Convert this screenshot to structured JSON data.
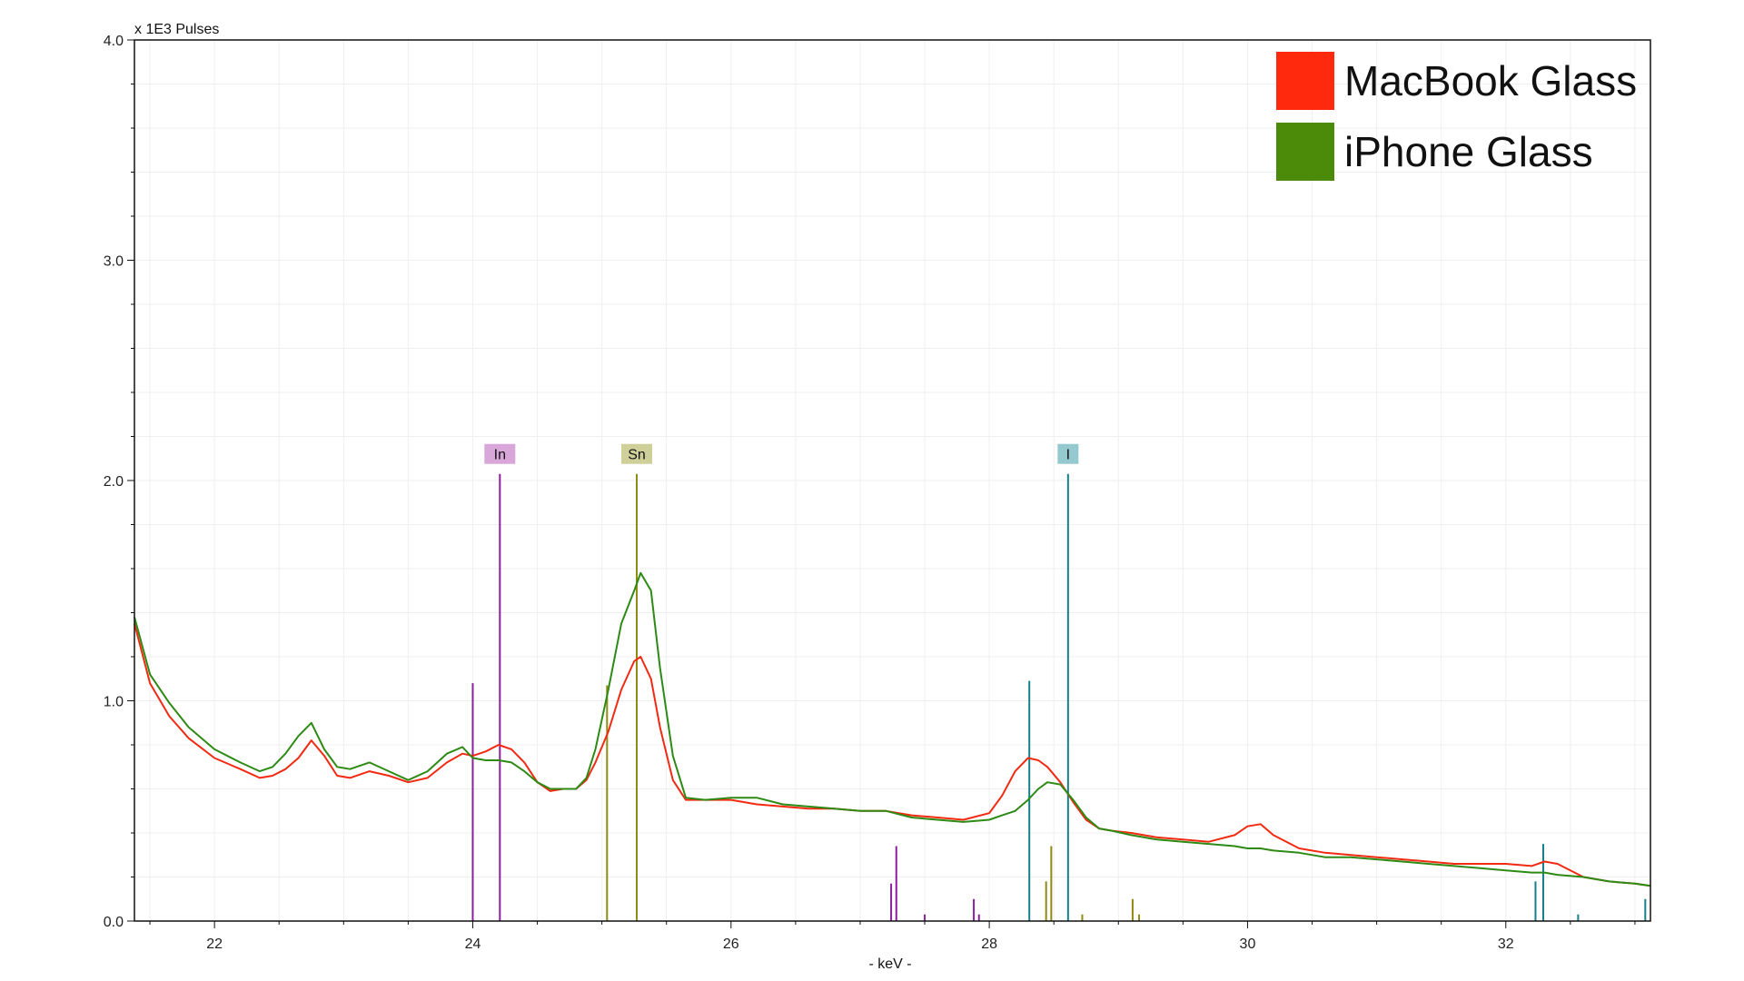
{
  "chart_data": {
    "type": "line",
    "y_unit_label": "x 1E3 Pulses",
    "xlabel": "- keV -",
    "xlim": [
      21.38,
      33.12
    ],
    "ylim": [
      0,
      4.0
    ],
    "x_ticks": [
      22,
      24,
      26,
      28,
      30,
      32
    ],
    "y_ticks": [
      0.0,
      1.0,
      2.0,
      3.0,
      4.0
    ],
    "x_tick_labels": [
      "22",
      "24",
      "26",
      "28",
      "30",
      "32"
    ],
    "y_tick_labels": [
      "0.0",
      "1.0",
      "2.0",
      "3.0",
      "4.0"
    ],
    "grid": true,
    "legend_position": "top-right",
    "series": [
      {
        "name": "MacBook Glass",
        "color": "#f22a12",
        "x": [
          21.38,
          21.5,
          21.65,
          21.8,
          22.0,
          22.2,
          22.35,
          22.45,
          22.55,
          22.65,
          22.75,
          22.85,
          22.95,
          23.05,
          23.2,
          23.35,
          23.5,
          23.65,
          23.8,
          23.92,
          24.0,
          24.1,
          24.2,
          24.3,
          24.4,
          24.5,
          24.6,
          24.7,
          24.8,
          24.88,
          24.95,
          25.05,
          25.15,
          25.25,
          25.3,
          25.38,
          25.45,
          25.55,
          25.65,
          25.8,
          26.0,
          26.2,
          26.4,
          26.6,
          26.8,
          27.0,
          27.2,
          27.4,
          27.6,
          27.8,
          28.0,
          28.1,
          28.2,
          28.3,
          28.38,
          28.45,
          28.55,
          28.65,
          28.75,
          28.85,
          28.95,
          29.1,
          29.3,
          29.5,
          29.7,
          29.9,
          30.0,
          30.1,
          30.2,
          30.4,
          30.6,
          30.8,
          31.0,
          31.2,
          31.4,
          31.6,
          31.8,
          32.0,
          32.2,
          32.3,
          32.4,
          32.6,
          32.8,
          33.0,
          33.12
        ],
        "values": [
          1.35,
          1.08,
          0.93,
          0.83,
          0.74,
          0.69,
          0.65,
          0.66,
          0.69,
          0.74,
          0.82,
          0.75,
          0.66,
          0.65,
          0.68,
          0.66,
          0.63,
          0.65,
          0.72,
          0.76,
          0.75,
          0.77,
          0.8,
          0.78,
          0.72,
          0.63,
          0.59,
          0.6,
          0.6,
          0.64,
          0.72,
          0.86,
          1.05,
          1.18,
          1.2,
          1.1,
          0.88,
          0.64,
          0.55,
          0.55,
          0.55,
          0.53,
          0.52,
          0.51,
          0.51,
          0.5,
          0.5,
          0.48,
          0.47,
          0.46,
          0.49,
          0.57,
          0.68,
          0.74,
          0.73,
          0.7,
          0.63,
          0.54,
          0.46,
          0.42,
          0.41,
          0.4,
          0.38,
          0.37,
          0.36,
          0.39,
          0.43,
          0.44,
          0.39,
          0.33,
          0.31,
          0.3,
          0.29,
          0.28,
          0.27,
          0.26,
          0.26,
          0.26,
          0.25,
          0.27,
          0.26,
          0.2,
          0.18,
          0.17,
          0.16
        ]
      },
      {
        "name": "iPhone Glass",
        "color": "#2d8a14",
        "x": [
          21.38,
          21.5,
          21.65,
          21.8,
          22.0,
          22.2,
          22.35,
          22.45,
          22.55,
          22.65,
          22.75,
          22.85,
          22.95,
          23.05,
          23.2,
          23.35,
          23.5,
          23.65,
          23.8,
          23.92,
          24.0,
          24.1,
          24.2,
          24.3,
          24.4,
          24.5,
          24.6,
          24.7,
          24.8,
          24.88,
          24.95,
          25.05,
          25.15,
          25.25,
          25.3,
          25.38,
          25.45,
          25.55,
          25.65,
          25.8,
          26.0,
          26.2,
          26.4,
          26.6,
          26.8,
          27.0,
          27.2,
          27.4,
          27.6,
          27.8,
          28.0,
          28.1,
          28.2,
          28.3,
          28.38,
          28.45,
          28.55,
          28.65,
          28.75,
          28.85,
          28.95,
          29.1,
          29.3,
          29.5,
          29.7,
          29.9,
          30.0,
          30.1,
          30.2,
          30.4,
          30.6,
          30.8,
          31.0,
          31.2,
          31.4,
          31.6,
          31.8,
          32.0,
          32.2,
          32.3,
          32.4,
          32.6,
          32.8,
          33.0,
          33.12
        ],
        "values": [
          1.38,
          1.12,
          0.99,
          0.88,
          0.78,
          0.72,
          0.68,
          0.7,
          0.76,
          0.84,
          0.9,
          0.78,
          0.7,
          0.69,
          0.72,
          0.68,
          0.64,
          0.68,
          0.76,
          0.79,
          0.74,
          0.73,
          0.73,
          0.72,
          0.68,
          0.63,
          0.6,
          0.6,
          0.6,
          0.65,
          0.78,
          1.05,
          1.35,
          1.5,
          1.58,
          1.5,
          1.15,
          0.75,
          0.56,
          0.55,
          0.56,
          0.56,
          0.53,
          0.52,
          0.51,
          0.5,
          0.5,
          0.47,
          0.46,
          0.45,
          0.46,
          0.48,
          0.5,
          0.55,
          0.6,
          0.63,
          0.62,
          0.55,
          0.47,
          0.42,
          0.41,
          0.39,
          0.37,
          0.36,
          0.35,
          0.34,
          0.33,
          0.33,
          0.32,
          0.31,
          0.29,
          0.29,
          0.28,
          0.27,
          0.26,
          0.25,
          0.24,
          0.23,
          0.22,
          0.22,
          0.21,
          0.2,
          0.18,
          0.17,
          0.16
        ]
      }
    ],
    "element_lines": [
      {
        "element": "In",
        "color": "#8b1fa0",
        "label_bg": "#d9a6d9",
        "labeled_x": 24.21,
        "lines": [
          {
            "x": 24.0,
            "y": 1.08
          },
          {
            "x": 24.21,
            "y": 2.03
          },
          {
            "x": 27.24,
            "y": 0.17
          },
          {
            "x": 27.28,
            "y": 0.34
          },
          {
            "x": 27.5,
            "y": 0.03
          },
          {
            "x": 27.88,
            "y": 0.1
          },
          {
            "x": 27.92,
            "y": 0.03
          }
        ]
      },
      {
        "element": "Sn",
        "color": "#8f8a12",
        "label_bg": "#cfcf9a",
        "labeled_x": 25.27,
        "lines": [
          {
            "x": 25.04,
            "y": 1.07
          },
          {
            "x": 25.27,
            "y": 2.03
          },
          {
            "x": 28.44,
            "y": 0.18
          },
          {
            "x": 28.48,
            "y": 0.34
          },
          {
            "x": 28.72,
            "y": 0.03
          },
          {
            "x": 29.11,
            "y": 0.1
          },
          {
            "x": 29.16,
            "y": 0.03
          }
        ]
      },
      {
        "element": "I",
        "color": "#13808a",
        "label_bg": "#94c9cf",
        "labeled_x": 28.61,
        "lines": [
          {
            "x": 28.31,
            "y": 1.09
          },
          {
            "x": 28.61,
            "y": 2.03
          },
          {
            "x": 32.23,
            "y": 0.18
          },
          {
            "x": 32.29,
            "y": 0.35
          },
          {
            "x": 32.56,
            "y": 0.03
          },
          {
            "x": 33.08,
            "y": 0.1
          }
        ]
      }
    ]
  }
}
